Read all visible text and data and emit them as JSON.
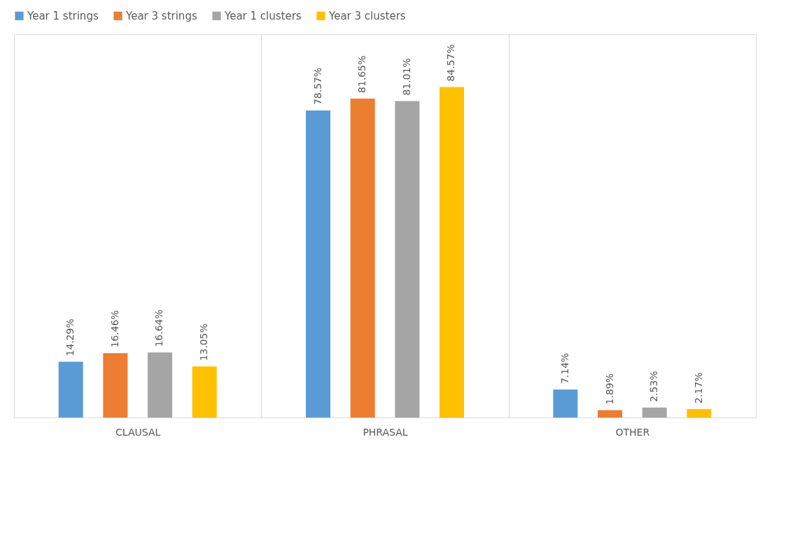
{
  "chart_data": {
    "type": "bar",
    "categories": [
      "CLAUSAL",
      "PHRASAL",
      "OTHER"
    ],
    "series": [
      {
        "name": "Year 1 strings",
        "color": "#5b9bd5",
        "values": [
          14.29,
          78.57,
          7.14
        ],
        "value_labels": [
          "14.29%",
          "78.57%",
          "7.14%"
        ]
      },
      {
        "name": "Year 3 strings",
        "color": "#ed7d31",
        "values": [
          16.46,
          81.65,
          1.89
        ],
        "value_labels": [
          "16.46%",
          "81.65%",
          "1.89%"
        ]
      },
      {
        "name": "Year 1 clusters",
        "color": "#a5a5a5",
        "values": [
          16.64,
          81.01,
          2.53
        ],
        "value_labels": [
          "16.64%",
          "81.01%",
          "2.53%"
        ]
      },
      {
        "name": "Year 3 clusters",
        "color": "#ffc000",
        "values": [
          13.05,
          84.57,
          2.17
        ],
        "value_labels": [
          "13.05%",
          "84.57%",
          "2.17%"
        ]
      }
    ],
    "grid": "x",
    "legend": "top"
  }
}
